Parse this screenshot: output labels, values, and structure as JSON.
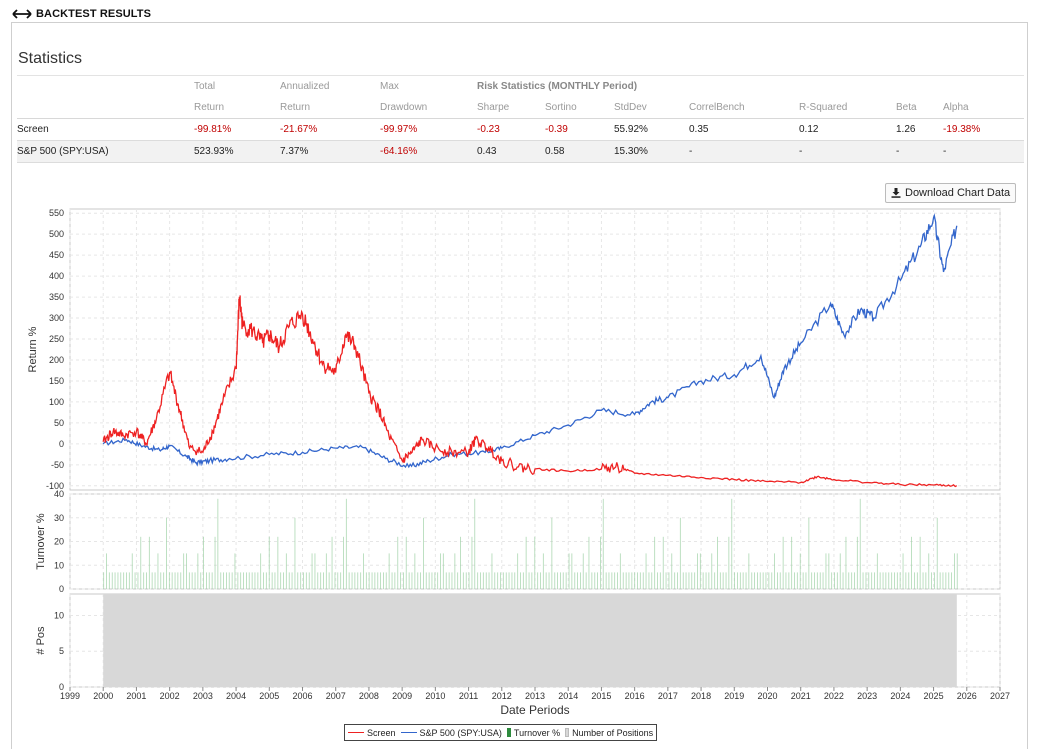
{
  "header": {
    "title": "BACKTEST RESULTS",
    "icon": "double-arrow-icon"
  },
  "statistics": {
    "title": "Statistics",
    "header_row1": [
      "Total",
      "Annualized",
      "Max",
      "Risk Statistics (MONTHLY Period)"
    ],
    "header_row2": [
      "Return",
      "Return",
      "Drawdown",
      "Sharpe",
      "Sortino",
      "StdDev",
      "CorrelBench",
      "R-Squared",
      "Beta",
      "Alpha"
    ],
    "rows": [
      {
        "name": "Screen",
        "total": "-99.81%",
        "annualized": "-21.67%",
        "drawdown": "-99.97%",
        "sharpe": "-0.23",
        "sortino": "-0.39",
        "stddev": "55.92%",
        "correl": "0.35",
        "rsq": "0.12",
        "beta": "1.26",
        "alpha": "-19.38%"
      },
      {
        "name": "S&P 500 (SPY:USA)",
        "total": "523.93%",
        "annualized": "7.37%",
        "drawdown": "-64.16%",
        "sharpe": "0.43",
        "sortino": "0.58",
        "stddev": "15.30%",
        "correl": "-",
        "rsq": "-",
        "beta": "-",
        "alpha": "-"
      }
    ]
  },
  "download_button": {
    "label": "Download Chart Data",
    "icon": "download-icon"
  },
  "chart_data": [
    {
      "type": "line",
      "ylabel": "Return %",
      "ylim": [
        -110,
        560
      ],
      "yticks": [
        550,
        500,
        450,
        400,
        350,
        300,
        250,
        200,
        150,
        100,
        50,
        0,
        -50,
        -100
      ],
      "x_range": [
        1999,
        2027
      ],
      "grid": true,
      "series": [
        {
          "name": "Screen",
          "color": "#ee2222",
          "x": [
            2000.0,
            2000.3,
            2000.6,
            2001.0,
            2001.3,
            2001.6,
            2002.0,
            2002.3,
            2002.6,
            2003.0,
            2003.3,
            2003.6,
            2004.0,
            2004.1,
            2004.2,
            2004.5,
            2004.8,
            2005.0,
            2005.3,
            2005.6,
            2006.0,
            2006.3,
            2006.6,
            2007.0,
            2007.3,
            2007.6,
            2008.0,
            2008.3,
            2008.6,
            2009.0,
            2009.3,
            2009.6,
            2010.0,
            2010.5,
            2011.0,
            2011.2,
            2011.6,
            2012.0,
            2012.5,
            2013.0,
            2014.0,
            2015.0,
            2015.5,
            2016.0,
            2017.0,
            2018.0,
            2019.0,
            2020.0,
            2021.0,
            2021.5,
            2022.0,
            2023.0,
            2024.0,
            2025.0,
            2025.7
          ],
          "y": [
            5,
            30,
            20,
            30,
            0,
            60,
            170,
            80,
            -10,
            -20,
            30,
            100,
            180,
            350,
            280,
            270,
            240,
            260,
            230,
            280,
            310,
            250,
            190,
            170,
            260,
            230,
            120,
            80,
            20,
            -40,
            -20,
            10,
            -10,
            -20,
            -20,
            10,
            -10,
            -40,
            -55,
            -60,
            -65,
            -60,
            -55,
            -70,
            -75,
            -80,
            -85,
            -90,
            -92,
            -78,
            -85,
            -92,
            -97,
            -98,
            -99.8
          ]
        },
        {
          "name": "S&P 500 (SPY:USA)",
          "color": "#3366cc",
          "x": [
            2000.0,
            2000.7,
            2001.2,
            2001.7,
            2002.0,
            2002.5,
            2002.8,
            2003.2,
            2003.8,
            2005.0,
            2006.0,
            2007.0,
            2007.8,
            2008.5,
            2009.2,
            2009.8,
            2010.5,
            2011.5,
            2012.0,
            2013.0,
            2014.0,
            2015.0,
            2016.0,
            2016.5,
            2017.0,
            2018.0,
            2019.0,
            2019.8,
            2020.2,
            2020.5,
            2021.0,
            2021.9,
            2022.3,
            2022.8,
            2023.2,
            2024.0,
            2024.6,
            2025.0,
            2025.3,
            2025.7
          ],
          "y": [
            0,
            10,
            -5,
            -15,
            -5,
            -30,
            -45,
            -40,
            -35,
            -25,
            -20,
            -10,
            -8,
            -35,
            -55,
            -40,
            -25,
            -20,
            -10,
            20,
            45,
            80,
            70,
            100,
            110,
            150,
            165,
            210,
            110,
            180,
            240,
            335,
            260,
            320,
            300,
            390,
            470,
            540,
            410,
            520
          ]
        }
      ]
    },
    {
      "type": "bar",
      "ylabel": "Turnover %",
      "ylim": [
        0,
        40
      ],
      "yticks": [
        40,
        30,
        20,
        10,
        0
      ],
      "x_range": [
        1999,
        2027
      ],
      "series": [
        {
          "name": "Turnover %",
          "color": "#2e8b3e",
          "values_cycle": [
            7,
            7,
            15,
            7,
            7,
            22,
            7,
            15,
            7,
            7,
            7,
            30,
            7,
            15,
            7,
            7,
            22,
            7,
            7,
            15,
            7,
            7,
            7,
            38,
            7,
            15,
            7,
            22,
            7,
            7
          ]
        }
      ]
    },
    {
      "type": "area",
      "ylabel": "# Pos",
      "xlabel": "Date Periods",
      "ylim": [
        0,
        13
      ],
      "yticks": [
        10,
        5,
        0
      ],
      "x_range": [
        1999,
        2027
      ],
      "xtick_labels": [
        "1999",
        "2000",
        "2001",
        "2002",
        "2003",
        "2004",
        "2005",
        "2006",
        "2007",
        "2008",
        "2009",
        "2010",
        "2011",
        "2012",
        "2013",
        "2014",
        "2015",
        "2016",
        "2017",
        "2018",
        "2019",
        "2020",
        "2021",
        "2022",
        "2023",
        "2024",
        "2025",
        "2026",
        "2027"
      ],
      "series": [
        {
          "name": "Number of Positions",
          "color": "#d8d8d8",
          "x": [
            2000.0,
            2025.7
          ],
          "y": [
            13,
            13
          ]
        }
      ]
    }
  ]
}
